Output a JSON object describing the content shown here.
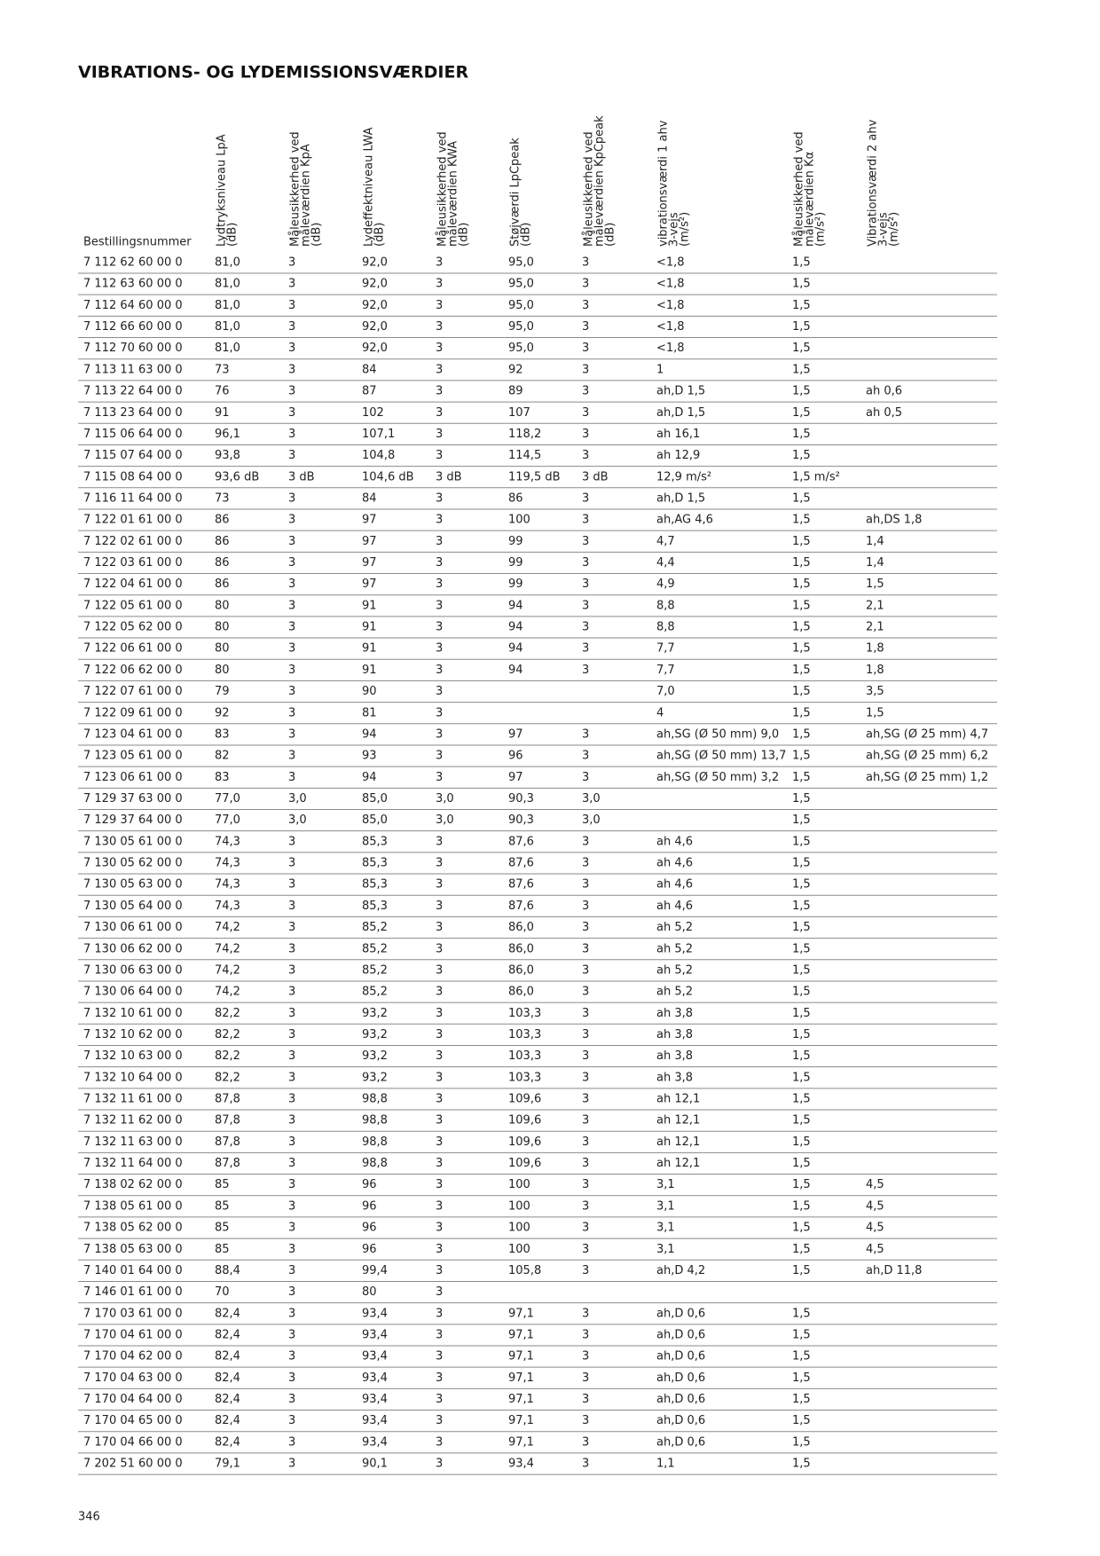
{
  "title": "VIBRATIONS- OG LYDEMISSIONSVÆRDIER",
  "table": {
    "headers": [
      [
        "Bestillingsnummer"
      ],
      [
        "Lydtryksniveau LpA",
        "(dB)"
      ],
      [
        "Måleusikkerhed ved",
        "måleværdien KpA",
        "(dB)"
      ],
      [
        "Lydeffektniveau LWA",
        "(dB)"
      ],
      [
        "Måleusikkerhed ved",
        "måleværdien KWA",
        "(dB)"
      ],
      [
        "Støjværdi LpCpeak",
        "(dB)"
      ],
      [
        "Måleusikkerhed ved",
        "måleværdien KpCpeak",
        "(dB)"
      ],
      [
        "vibrationsværdi 1 ahv",
        "3-vejs",
        "(m/s²)"
      ],
      [
        "Måleusikkerhed ved",
        "måleværdien Kα",
        "(m/s²)"
      ],
      [
        "Vibrationsværdi 2 ahv",
        "3-vejs",
        "(m/s²)"
      ]
    ],
    "rows": [
      [
        "7 112 62 60 00 0",
        "81,0",
        "3",
        "92,0",
        "3",
        "95,0",
        "3",
        "<1,8",
        "1,5",
        null
      ],
      [
        "7 112 63 60 00 0",
        "81,0",
        "3",
        "92,0",
        "3",
        "95,0",
        "3",
        "<1,8",
        "1,5",
        null
      ],
      [
        "7 112 64 60 00 0",
        "81,0",
        "3",
        "92,0",
        "3",
        "95,0",
        "3",
        "<1,8",
        "1,5",
        null
      ],
      [
        "7 112 66 60 00 0",
        "81,0",
        "3",
        "92,0",
        "3",
        "95,0",
        "3",
        "<1,8",
        "1,5",
        null
      ],
      [
        "7 112 70 60 00 0",
        "81,0",
        "3",
        "92,0",
        "3",
        "95,0",
        "3",
        "<1,8",
        "1,5",
        null
      ],
      [
        "7 113 11 63 00 0",
        "73",
        "3",
        "84",
        "3",
        "92",
        "3",
        "1",
        "1,5",
        null
      ],
      [
        "7 113 22 64 00 0",
        "76",
        "3",
        "87",
        "3",
        "89",
        "3",
        "ah,D 1,5",
        "1,5",
        "ah 0,6"
      ],
      [
        "7 113 23 64 00 0",
        "91",
        "3",
        "102",
        "3",
        "107",
        "3",
        "ah,D 1,5",
        "1,5",
        "ah 0,5"
      ],
      [
        "7 115 06 64 00 0",
        "96,1",
        "3",
        "107,1",
        "3",
        "118,2",
        "3",
        "ah 16,1",
        "1,5",
        null
      ],
      [
        "7 115 07 64 00 0",
        "93,8",
        "3",
        "104,8",
        "3",
        "114,5",
        "3",
        "ah 12,9",
        "1,5",
        null
      ],
      [
        "7 115 08 64 00 0",
        "93,6 dB",
        "3 dB",
        "104,6 dB",
        "3 dB",
        "119,5 dB",
        "3 dB",
        "12,9 m/s²",
        "1,5 m/s²",
        null
      ],
      [
        "7 116 11 64 00 0",
        "73",
        "3",
        "84",
        "3",
        "86",
        "3",
        "ah,D 1,5",
        "1,5",
        null
      ],
      [
        "7 122 01 61 00 0",
        "86",
        "3",
        "97",
        "3",
        "100",
        "3",
        "ah,AG 4,6",
        "1,5",
        "ah,DS 1,8"
      ],
      [
        "7 122 02 61 00 0",
        "86",
        "3",
        "97",
        "3",
        "99",
        "3",
        "4,7",
        "1,5",
        "1,4"
      ],
      [
        "7 122 03 61 00 0",
        "86",
        "3",
        "97",
        "3",
        "99",
        "3",
        "4,4",
        "1,5",
        "1,4"
      ],
      [
        "7 122 04 61 00 0",
        "86",
        "3",
        "97",
        "3",
        "99",
        "3",
        "4,9",
        "1,5",
        "1,5"
      ],
      [
        "7 122 05 61 00 0",
        "80",
        "3",
        "91",
        "3",
        "94",
        "3",
        "8,8",
        "1,5",
        "2,1"
      ],
      [
        "7 122 05 62 00 0",
        "80",
        "3",
        "91",
        "3",
        "94",
        "3",
        "8,8",
        "1,5",
        "2,1"
      ],
      [
        "7 122 06 61 00 0",
        "80",
        "3",
        "91",
        "3",
        "94",
        "3",
        "7,7",
        "1,5",
        "1,8"
      ],
      [
        "7 122 06 62 00 0",
        "80",
        "3",
        "91",
        "3",
        "94",
        "3",
        "7,7",
        "1,5",
        "1,8"
      ],
      [
        "7 122 07 61 00 0",
        "79",
        "3",
        "90",
        "3",
        null,
        null,
        "7,0",
        "1,5",
        "3,5"
      ],
      [
        "7 122 09 61 00 0",
        "92",
        "3",
        "81",
        "3",
        null,
        null,
        "4",
        "1,5",
        "1,5"
      ],
      [
        "7 123 04 61 00 0",
        "83",
        "3",
        "94",
        "3",
        "97",
        "3",
        "ah,SG (Ø 50 mm) 9,0",
        "1,5",
        "ah,SG (Ø 25 mm) 4,7"
      ],
      [
        "7 123 05 61 00 0",
        "82",
        "3",
        "93",
        "3",
        "96",
        "3",
        "ah,SG (Ø 50 mm) 13,7",
        "1,5",
        "ah,SG (Ø 25 mm) 6,2"
      ],
      [
        "7 123 06 61 00 0",
        "83",
        "3",
        "94",
        "3",
        "97",
        "3",
        "ah,SG (Ø 50 mm) 3,2",
        "1,5",
        "ah,SG (Ø 25 mm) 1,2"
      ],
      [
        "7 129 37 63 00 0",
        "77,0",
        "3,0",
        "85,0",
        "3,0",
        "90,3",
        "3,0",
        null,
        "1,5",
        null
      ],
      [
        "7 129 37 64 00 0",
        "77,0",
        "3,0",
        "85,0",
        "3,0",
        "90,3",
        "3,0",
        null,
        "1,5",
        null
      ],
      [
        "7 130 05 61 00 0",
        "74,3",
        "3",
        "85,3",
        "3",
        "87,6",
        "3",
        "ah 4,6",
        "1,5",
        null
      ],
      [
        "7 130 05 62 00 0",
        "74,3",
        "3",
        "85,3",
        "3",
        "87,6",
        "3",
        "ah 4,6",
        "1,5",
        null
      ],
      [
        "7 130 05 63 00 0",
        "74,3",
        "3",
        "85,3",
        "3",
        "87,6",
        "3",
        "ah 4,6",
        "1,5",
        null
      ],
      [
        "7 130 05 64 00 0",
        "74,3",
        "3",
        "85,3",
        "3",
        "87,6",
        "3",
        "ah 4,6",
        "1,5",
        null
      ],
      [
        "7 130 06 61 00 0",
        "74,2",
        "3",
        "85,2",
        "3",
        "86,0",
        "3",
        "ah 5,2",
        "1,5",
        null
      ],
      [
        "7 130 06 62 00 0",
        "74,2",
        "3",
        "85,2",
        "3",
        "86,0",
        "3",
        "ah 5,2",
        "1,5",
        null
      ],
      [
        "7 130 06 63 00 0",
        "74,2",
        "3",
        "85,2",
        "3",
        "86,0",
        "3",
        "ah 5,2",
        "1,5",
        null
      ],
      [
        "7 130 06 64 00 0",
        "74,2",
        "3",
        "85,2",
        "3",
        "86,0",
        "3",
        "ah 5,2",
        "1,5",
        null
      ],
      [
        "7 132 10 61 00 0",
        "82,2",
        "3",
        "93,2",
        "3",
        "103,3",
        "3",
        "ah 3,8",
        "1,5",
        null
      ],
      [
        "7 132 10 62 00 0",
        "82,2",
        "3",
        "93,2",
        "3",
        "103,3",
        "3",
        "ah 3,8",
        "1,5",
        null
      ],
      [
        "7 132 10 63 00 0",
        "82,2",
        "3",
        "93,2",
        "3",
        "103,3",
        "3",
        "ah 3,8",
        "1,5",
        null
      ],
      [
        "7 132 10 64 00 0",
        "82,2",
        "3",
        "93,2",
        "3",
        "103,3",
        "3",
        "ah 3,8",
        "1,5",
        null
      ],
      [
        "7 132 11 61 00 0",
        "87,8",
        "3",
        "98,8",
        "3",
        "109,6",
        "3",
        "ah 12,1",
        "1,5",
        null
      ],
      [
        "7 132 11 62 00 0",
        "87,8",
        "3",
        "98,8",
        "3",
        "109,6",
        "3",
        "ah 12,1",
        "1,5",
        null
      ],
      [
        "7 132 11 63 00 0",
        "87,8",
        "3",
        "98,8",
        "3",
        "109,6",
        "3",
        "ah 12,1",
        "1,5",
        null
      ],
      [
        "7 132 11 64 00 0",
        "87,8",
        "3",
        "98,8",
        "3",
        "109,6",
        "3",
        "ah 12,1",
        "1,5",
        null
      ],
      [
        "7 138 02 62 00 0",
        "85",
        "3",
        "96",
        "3",
        "100",
        "3",
        "3,1",
        "1,5",
        "4,5"
      ],
      [
        "7 138 05 61 00 0",
        "85",
        "3",
        "96",
        "3",
        "100",
        "3",
        "3,1",
        "1,5",
        "4,5"
      ],
      [
        "7 138 05 62 00 0",
        "85",
        "3",
        "96",
        "3",
        "100",
        "3",
        "3,1",
        "1,5",
        "4,5"
      ],
      [
        "7 138 05 63 00 0",
        "85",
        "3",
        "96",
        "3",
        "100",
        "3",
        "3,1",
        "1,5",
        "4,5"
      ],
      [
        "7 140 01 64 00 0",
        "88,4",
        "3",
        "99,4",
        "3",
        "105,8",
        "3",
        "ah,D 4,2",
        "1,5",
        "ah,D 11,8"
      ],
      [
        "7 146 01 61 00 0",
        "70",
        "3",
        "80",
        "3",
        null,
        null,
        null,
        null,
        null
      ],
      [
        "7 170 03 61 00 0",
        "82,4",
        "3",
        "93,4",
        "3",
        "97,1",
        "3",
        "ah,D 0,6",
        "1,5",
        null
      ],
      [
        "7 170 04 61 00 0",
        "82,4",
        "3",
        "93,4",
        "3",
        "97,1",
        "3",
        "ah,D 0,6",
        "1,5",
        null
      ],
      [
        "7 170 04 62 00 0",
        "82,4",
        "3",
        "93,4",
        "3",
        "97,1",
        "3",
        "ah,D 0,6",
        "1,5",
        null
      ],
      [
        "7 170 04 63 00 0",
        "82,4",
        "3",
        "93,4",
        "3",
        "97,1",
        "3",
        "ah,D 0,6",
        "1,5",
        null
      ],
      [
        "7 170 04 64 00 0",
        "82,4",
        "3",
        "93,4",
        "3",
        "97,1",
        "3",
        "ah,D 0,6",
        "1,5",
        null
      ],
      [
        "7 170 04 65 00 0",
        "82,4",
        "3",
        "93,4",
        "3",
        "97,1",
        "3",
        "ah,D 0,6",
        "1,5",
        null
      ],
      [
        "7 170 04 66 00 0",
        "82,4",
        "3",
        "93,4",
        "3",
        "97,1",
        "3",
        "ah,D 0,6",
        "1,5",
        null
      ],
      [
        "7 202 51 60 00 0",
        "79,1",
        "3",
        "90,1",
        "3",
        "93,4",
        "3",
        "1,1",
        "1,5",
        null
      ]
    ]
  },
  "page_number": "346"
}
